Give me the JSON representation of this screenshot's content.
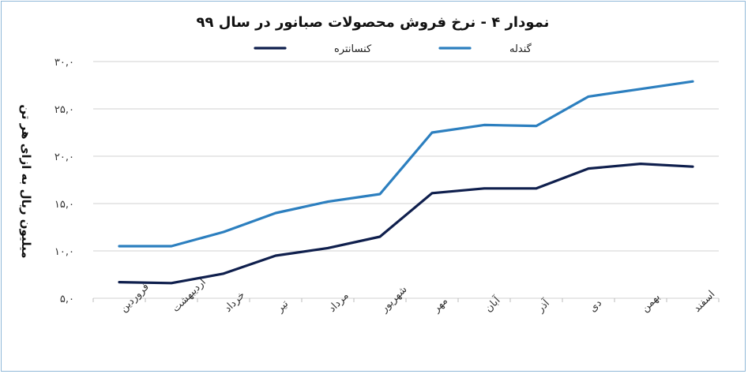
{
  "chart_data": {
    "type": "line",
    "title": "نمودار ۴ - نرخ فروش محصولات صبانور در سال ۹۹",
    "ylabel": "میلیون ریال به ازای هر تن",
    "xlabel": "",
    "ylim": [
      5,
      30
    ],
    "yticks": [
      5,
      10,
      15,
      20,
      25,
      30
    ],
    "ytick_labels": [
      "۵,۰",
      "۱۰,۰",
      "۱۵,۰",
      "۲۰,۰",
      "۲۵,۰",
      "۳۰,۰"
    ],
    "grid": "horizontal",
    "legend_position": "top",
    "categories": [
      "فروردین",
      "اردیبهشت",
      "خرداد",
      "تیر",
      "مرداد",
      "شهریور",
      "مهر",
      "آبان",
      "آذر",
      "دی",
      "بهمن",
      "اسفند"
    ],
    "series": [
      {
        "name": "کنسانتره",
        "color": "#0f1f4d",
        "values": [
          6.7,
          6.6,
          7.6,
          9.5,
          10.3,
          11.5,
          16.1,
          16.6,
          16.6,
          18.7,
          19.2,
          18.9
        ]
      },
      {
        "name": "گندله",
        "color": "#2c7fbf",
        "values": [
          10.5,
          10.5,
          12.0,
          14.0,
          15.2,
          16.0,
          22.5,
          23.3,
          23.2,
          26.3,
          27.1,
          27.9
        ]
      }
    ]
  }
}
